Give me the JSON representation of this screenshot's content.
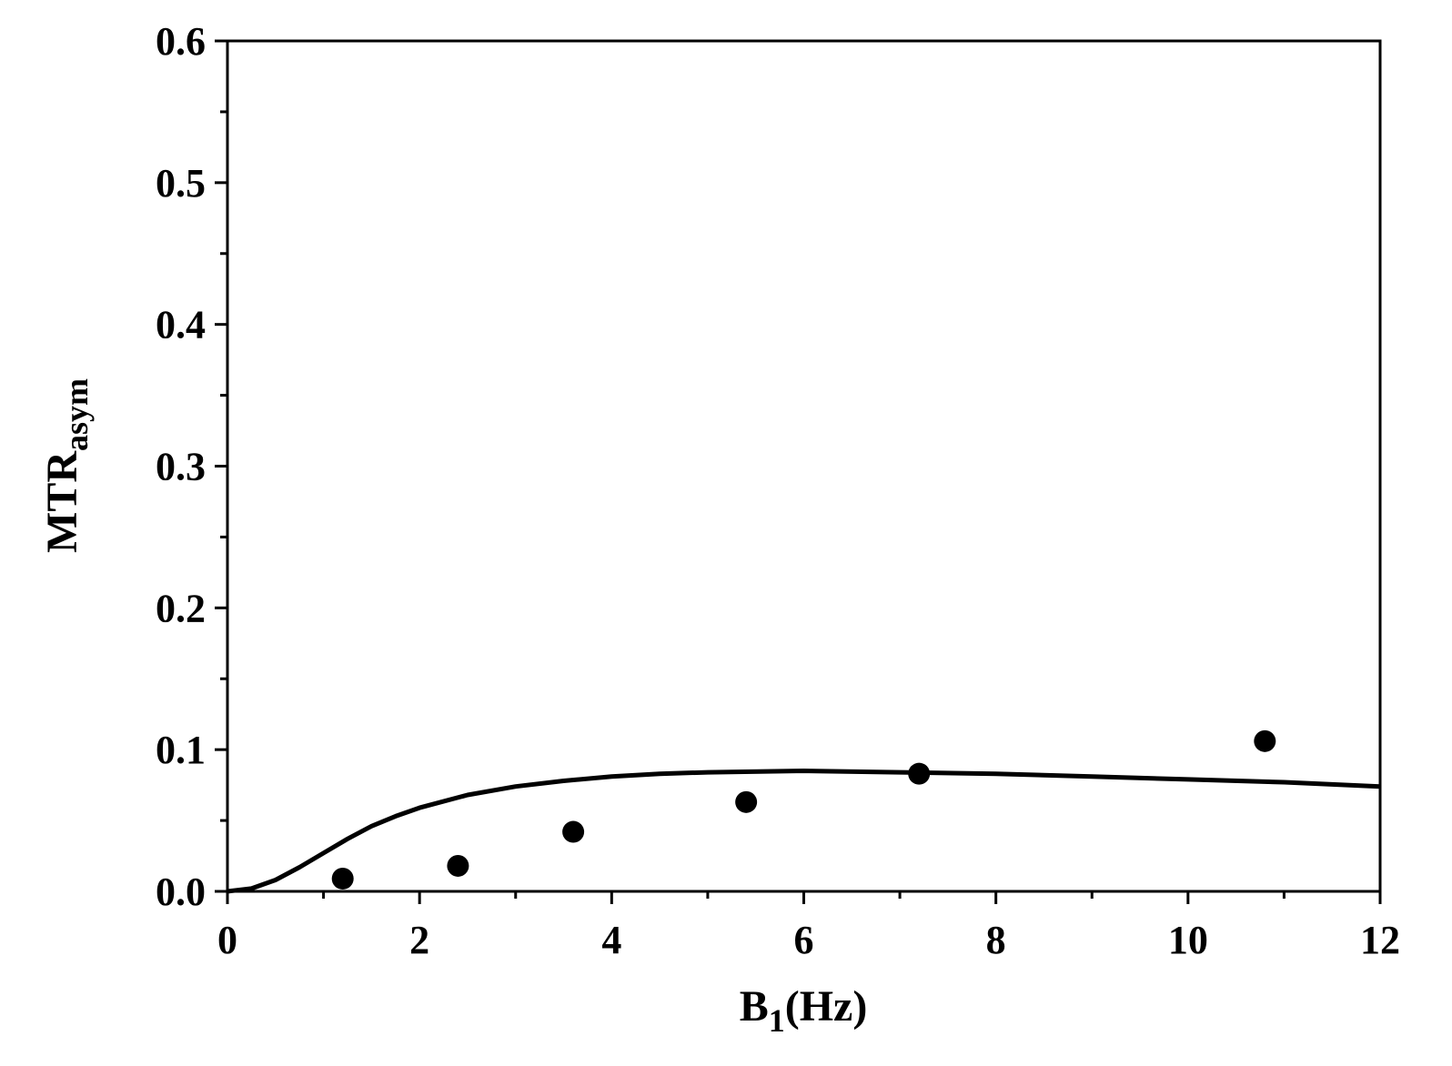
{
  "chart_data": {
    "type": "scatter",
    "xlabel": {
      "main": "B",
      "sub": "1",
      "rest": "(Hz)"
    },
    "ylabel": {
      "main": "MTR",
      "sub": "asym"
    },
    "xlim": [
      0,
      12
    ],
    "ylim": [
      0,
      0.6
    ],
    "xticks": [
      "0",
      "2",
      "4",
      "6",
      "8",
      "10",
      "12"
    ],
    "yticks": [
      "0.0",
      "0.1",
      "0.2",
      "0.3",
      "0.4",
      "0.5",
      "0.6"
    ],
    "grid": false,
    "series": [
      {
        "kind": "points",
        "x": [
          1.2,
          2.4,
          3.6,
          5.4,
          7.2,
          10.8
        ],
        "y": [
          0.009,
          0.018,
          0.042,
          0.063,
          0.083,
          0.106
        ]
      },
      {
        "kind": "line",
        "x": [
          0,
          0.25,
          0.5,
          0.75,
          1.0,
          1.25,
          1.5,
          1.75,
          2.0,
          2.5,
          3.0,
          3.5,
          4.0,
          4.5,
          5.0,
          6.0,
          7.0,
          8.0,
          9.0,
          10.0,
          11.0,
          12.0
        ],
        "y": [
          0.0,
          0.002,
          0.008,
          0.017,
          0.027,
          0.037,
          0.046,
          0.053,
          0.059,
          0.068,
          0.074,
          0.078,
          0.081,
          0.083,
          0.084,
          0.085,
          0.084,
          0.083,
          0.081,
          0.079,
          0.077,
          0.074
        ]
      }
    ],
    "colors": {
      "axis": "#000000",
      "marker": "#000000",
      "line": "#000000"
    }
  }
}
